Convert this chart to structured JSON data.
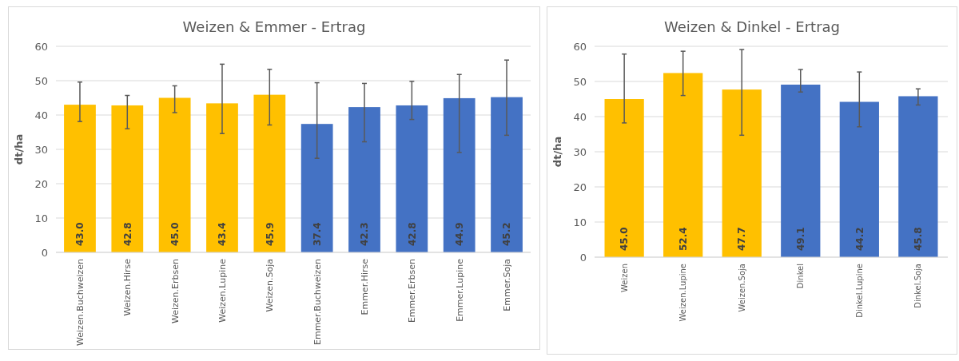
{
  "chart_data": [
    {
      "type": "bar",
      "title": "Weizen & Emmer - Ertrag",
      "ylabel": "dt/ha",
      "categories": [
        "Weizen.Buchweizen",
        "Weizen.Hirse",
        "Weizen.Erbsen",
        "Weizen.Lupine",
        "Weizen.Soja",
        "Emmer.Buchweizen",
        "Emmer.Hirse",
        "Emmer.Erbsen",
        "Emmer.Lupine",
        "Emmer.Soja"
      ],
      "values": [
        43.0,
        42.8,
        45.0,
        43.4,
        45.9,
        37.4,
        42.3,
        42.8,
        44.9,
        45.2
      ],
      "colors": [
        "#ffc000",
        "#ffc000",
        "#ffc000",
        "#ffc000",
        "#ffc000",
        "#4472c4",
        "#4472c4",
        "#4472c4",
        "#4472c4",
        "#4472c4"
      ],
      "errors": [
        [
          38.1,
          49.6
        ],
        [
          36.0,
          45.7
        ],
        [
          40.7,
          48.5
        ],
        [
          34.6,
          54.8
        ],
        [
          37.1,
          53.3
        ],
        [
          27.4,
          49.4
        ],
        [
          32.2,
          49.2
        ],
        [
          38.7,
          49.8
        ],
        [
          29.1,
          51.8
        ],
        [
          34.1,
          56.0
        ]
      ],
      "value_labels": [
        "43.0",
        "42.8",
        "45.0",
        "43.4",
        "45.9",
        "37.4",
        "42.3",
        "42.8",
        "44.9",
        "45.2"
      ],
      "ylim": [
        0,
        60
      ],
      "yticks": [
        0,
        10,
        20,
        30,
        40,
        50,
        60
      ],
      "grid": "y"
    },
    {
      "type": "bar",
      "title": "Weizen & Dinkel - Ertrag",
      "ylabel": "dt/ha",
      "categories": [
        "Weizen",
        "Weizen.Lupine",
        "Weizen.Soja",
        "Dinkel",
        "Dinkel.Lupine",
        "Dinkel.Soja"
      ],
      "values": [
        45.0,
        52.4,
        47.7,
        49.1,
        44.2,
        45.8
      ],
      "colors": [
        "#ffc000",
        "#ffc000",
        "#ffc000",
        "#4472c4",
        "#4472c4",
        "#4472c4"
      ],
      "errors": [
        [
          38.2,
          57.8
        ],
        [
          46.0,
          58.6
        ],
        [
          34.7,
          59.1
        ],
        [
          47.0,
          53.4
        ],
        [
          37.1,
          52.7
        ],
        [
          43.3,
          47.9
        ]
      ],
      "value_labels": [
        "45.0",
        "52.4",
        "47.7",
        "49.1",
        "44.2",
        "45.8"
      ],
      "ylim": [
        0,
        60
      ],
      "yticks": [
        0,
        10,
        20,
        30,
        40,
        50,
        60
      ],
      "grid": "y"
    }
  ]
}
